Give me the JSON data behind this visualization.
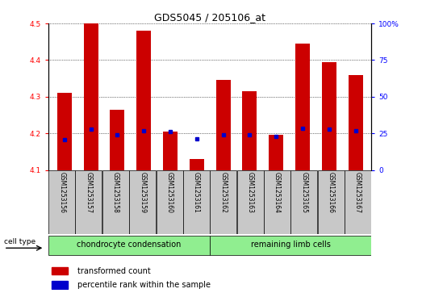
{
  "title": "GDS5045 / 205106_at",
  "samples": [
    "GSM1253156",
    "GSM1253157",
    "GSM1253158",
    "GSM1253159",
    "GSM1253160",
    "GSM1253161",
    "GSM1253162",
    "GSM1253163",
    "GSM1253164",
    "GSM1253165",
    "GSM1253166",
    "GSM1253167"
  ],
  "red_values": [
    4.31,
    4.5,
    4.265,
    4.48,
    4.205,
    4.13,
    4.345,
    4.315,
    4.195,
    4.445,
    4.395,
    4.36
  ],
  "blue_values": [
    4.182,
    4.212,
    4.196,
    4.207,
    4.205,
    4.185,
    4.197,
    4.197,
    4.191,
    4.213,
    4.212,
    4.207
  ],
  "ylim": [
    4.1,
    4.5
  ],
  "yticks": [
    4.1,
    4.2,
    4.3,
    4.4,
    4.5
  ],
  "right_yticks": [
    0,
    25,
    50,
    75,
    100
  ],
  "right_ytick_labels": [
    "0",
    "25",
    "50",
    "75",
    "100%"
  ],
  "group1_label": "chondrocyte condensation",
  "group2_label": "remaining limb cells",
  "group_color": "#90ee90",
  "cell_type_label": "cell type",
  "legend_red": "transformed count",
  "legend_blue": "percentile rank within the sample",
  "bar_color": "#cc0000",
  "dot_color": "#0000cc",
  "bar_width": 0.55,
  "title_fontsize": 9,
  "tick_fontsize": 6.5,
  "sample_fontsize": 5.5,
  "group_fontsize": 7,
  "legend_fontsize": 7,
  "header_color": "#c8c8c8",
  "group1_count": 6,
  "group2_count": 6
}
